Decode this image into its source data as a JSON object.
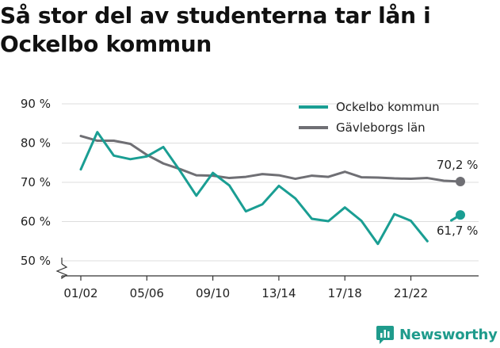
{
  "header": {
    "title": "Så stor del av studenterna tar lån i Ockelbo kommun"
  },
  "brand": {
    "name": "Newsworthy"
  },
  "colors": {
    "ockelbo": "#1a9e93",
    "gavleborg": "#6f6f74",
    "axis": "#333333",
    "grid": "#dddddd"
  },
  "chart_data": {
    "type": "line",
    "x": [
      "01/02",
      "02/03",
      "03/04",
      "04/05",
      "05/06",
      "06/07",
      "07/08",
      "08/09",
      "09/10",
      "10/11",
      "11/12",
      "12/13",
      "13/14",
      "14/15",
      "15/16",
      "16/17",
      "17/18",
      "18/19",
      "19/20",
      "20/21",
      "21/22",
      "22/23",
      "23/24",
      "24/25"
    ],
    "x_tick_labels": [
      "01/02",
      "05/06",
      "09/10",
      "13/14",
      "17/18",
      "21/22"
    ],
    "y_tick_labels": [
      "50 %",
      "60 %",
      "70 %",
      "80 %",
      "90 %"
    ],
    "ylim": [
      50,
      90
    ],
    "y_axis_break": true,
    "legend_position": "top-right",
    "series": [
      {
        "name": "Ockelbo kommun",
        "color": "#1a9e93",
        "values": [
          73.3,
          82.8,
          76.8,
          75.9,
          76.6,
          79.0,
          73.0,
          66.6,
          72.4,
          69.2,
          62.6,
          64.4,
          69.1,
          65.9,
          60.7,
          60.1,
          63.6,
          60.2,
          54.3,
          61.9,
          60.2,
          55.0,
          null,
          61.7
        ],
        "end_label": "61,7 %"
      },
      {
        "name": "Gävleborgs län",
        "color": "#6f6f74",
        "values": [
          81.8,
          80.6,
          80.6,
          79.8,
          77.0,
          74.8,
          73.4,
          71.8,
          71.7,
          71.1,
          71.4,
          72.1,
          71.8,
          70.9,
          71.7,
          71.4,
          72.7,
          71.3,
          71.2,
          71.0,
          70.9,
          71.1,
          70.4,
          70.2
        ],
        "end_label": "70,2 %"
      }
    ],
    "title": "Så stor del av studenterna tar lån i Ockelbo kommun",
    "xlabel": "",
    "ylabel": "",
    "grid": true
  }
}
